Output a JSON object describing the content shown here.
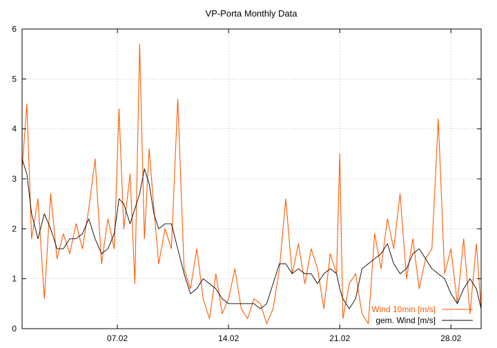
{
  "chart_data": {
    "type": "line",
    "title": "VP-Porta Monthly Data",
    "xlabel": "",
    "ylabel": "",
    "ylim": [
      0,
      6
    ],
    "xlim": [
      1.0,
      29.9
    ],
    "x_tick_labels": [
      {
        "x": 7,
        "label": "07.02"
      },
      {
        "x": 14,
        "label": "14.02"
      },
      {
        "x": 21,
        "label": "21.02"
      },
      {
        "x": 28,
        "label": "28.02"
      }
    ],
    "y_ticks": [
      0,
      1,
      2,
      3,
      4,
      5,
      6
    ],
    "grid": true,
    "legend_position": "bottom-right",
    "series": [
      {
        "name": "Wind 10min [m/s]",
        "color": "#ff5a00",
        "x": [
          1.0,
          1.3,
          1.6,
          2.0,
          2.4,
          2.8,
          3.2,
          3.6,
          4.0,
          4.4,
          4.8,
          5.2,
          5.6,
          6.0,
          6.4,
          6.8,
          7.1,
          7.4,
          7.8,
          8.1,
          8.4,
          8.7,
          9.0,
          9.3,
          9.6,
          10.0,
          10.4,
          10.8,
          11.2,
          11.6,
          12.0,
          12.4,
          12.8,
          13.2,
          13.6,
          14.0,
          14.4,
          14.8,
          15.2,
          15.6,
          16.0,
          16.4,
          16.8,
          17.2,
          17.6,
          18.0,
          18.4,
          18.8,
          19.2,
          19.6,
          20.0,
          20.4,
          20.8,
          21.0,
          21.2,
          21.6,
          22.0,
          22.4,
          22.8,
          23.2,
          23.6,
          24.0,
          24.4,
          24.8,
          25.2,
          25.6,
          26.0,
          26.4,
          26.8,
          27.2,
          27.6,
          28.0,
          28.4,
          28.8,
          29.2,
          29.6,
          29.9
        ],
        "y": [
          3.2,
          4.5,
          1.8,
          2.6,
          0.6,
          2.7,
          1.4,
          1.9,
          1.5,
          2.1,
          1.6,
          2.4,
          3.4,
          1.3,
          2.2,
          1.6,
          4.4,
          2.0,
          3.1,
          0.9,
          5.7,
          1.8,
          3.6,
          2.4,
          1.3,
          2.0,
          1.6,
          4.6,
          1.2,
          0.8,
          1.6,
          0.6,
          0.2,
          1.1,
          0.3,
          0.6,
          1.2,
          0.4,
          0.2,
          0.6,
          0.5,
          0.1,
          0.4,
          1.2,
          2.6,
          1.1,
          1.7,
          0.9,
          1.6,
          1.2,
          0.4,
          1.5,
          1.1,
          3.5,
          0.2,
          0.9,
          1.1,
          0.3,
          0.1,
          1.9,
          1.2,
          2.2,
          1.6,
          2.7,
          1.0,
          1.8,
          0.8,
          1.4,
          1.6,
          4.2,
          1.1,
          1.6,
          0.5,
          1.8,
          0.3,
          1.7,
          0.4
        ]
      },
      {
        "name": "gem. Wind [m/s]",
        "color": "#000000",
        "x": [
          1.0,
          1.3,
          1.6,
          2.0,
          2.4,
          2.8,
          3.2,
          3.6,
          4.0,
          4.4,
          4.8,
          5.2,
          5.6,
          6.0,
          6.4,
          6.8,
          7.1,
          7.4,
          7.8,
          8.1,
          8.4,
          8.7,
          9.0,
          9.3,
          9.6,
          10.0,
          10.4,
          10.8,
          11.2,
          11.6,
          12.0,
          12.4,
          12.8,
          13.2,
          13.6,
          14.0,
          14.4,
          14.8,
          15.2,
          15.6,
          16.0,
          16.4,
          16.8,
          17.2,
          17.6,
          18.0,
          18.4,
          18.8,
          19.2,
          19.6,
          20.0,
          20.4,
          20.8,
          21.0,
          21.2,
          21.6,
          22.0,
          22.4,
          22.8,
          23.2,
          23.6,
          24.0,
          24.4,
          24.8,
          25.2,
          25.6,
          26.0,
          26.4,
          26.8,
          27.2,
          27.6,
          28.0,
          28.4,
          28.8,
          29.2,
          29.6,
          29.9
        ],
        "y": [
          3.4,
          3.1,
          2.3,
          1.8,
          2.3,
          2.0,
          1.6,
          1.6,
          1.8,
          1.8,
          1.9,
          2.2,
          1.8,
          1.5,
          1.6,
          1.9,
          2.6,
          2.5,
          2.1,
          2.4,
          2.7,
          3.2,
          2.9,
          2.3,
          2.0,
          2.1,
          2.1,
          1.6,
          1.1,
          0.7,
          0.8,
          1.0,
          0.9,
          0.8,
          0.6,
          0.5,
          0.5,
          0.5,
          0.5,
          0.5,
          0.4,
          0.5,
          0.9,
          1.3,
          1.3,
          1.1,
          1.2,
          1.1,
          1.1,
          0.9,
          1.1,
          1.2,
          1.1,
          0.8,
          0.6,
          0.4,
          0.6,
          1.2,
          1.3,
          1.4,
          1.5,
          1.7,
          1.3,
          1.1,
          1.2,
          1.5,
          1.6,
          1.4,
          1.2,
          1.1,
          1.0,
          0.7,
          0.5,
          0.8,
          1.0,
          0.8,
          0.4
        ]
      }
    ]
  }
}
